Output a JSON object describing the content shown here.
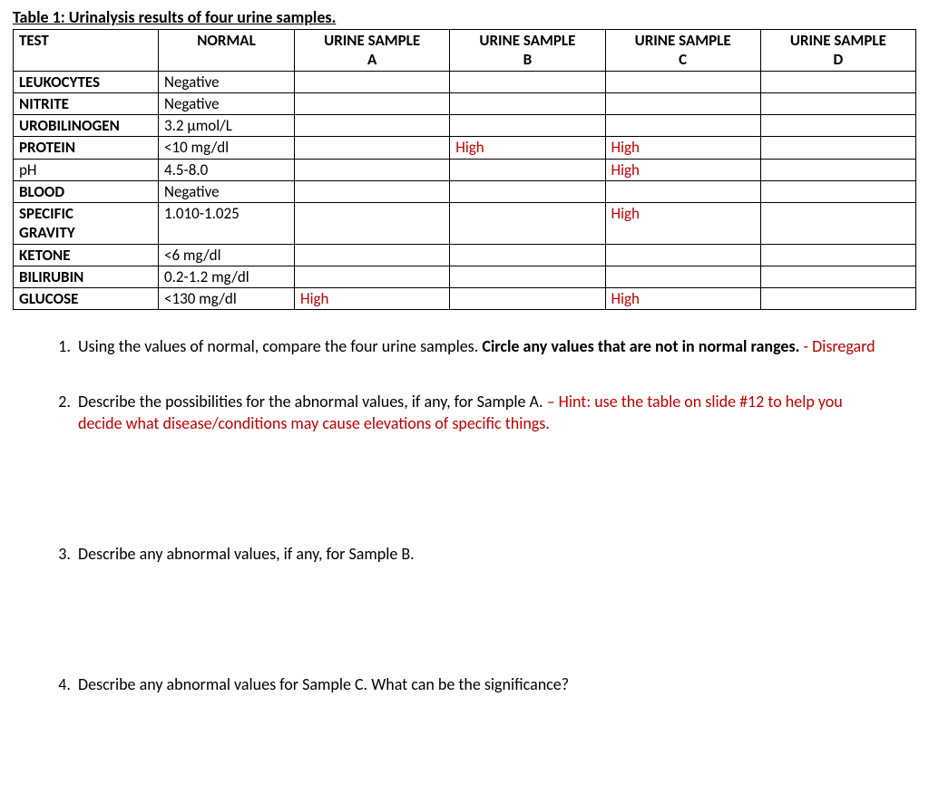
{
  "caption": "Table 1: Urinalysis results of four urine samples.",
  "columns": [
    "TEST",
    "NORMAL",
    "URINE SAMPLE A",
    "URINE SAMPLE B",
    "URINE SAMPLE C",
    "URINE SAMPLE D"
  ],
  "high_label": "High",
  "abnormal_color": "#c00000",
  "border_color": "#000000",
  "rows": [
    {
      "test": "LEUKOCYTES",
      "normal": "Negative",
      "a": "",
      "b": "",
      "c": "",
      "d": ""
    },
    {
      "test": "NITRITE",
      "normal": "Negative",
      "a": "",
      "b": "",
      "c": "",
      "d": ""
    },
    {
      "test": "UROBILINOGEN",
      "normal": "3.2 μmol/L",
      "a": "",
      "b": "",
      "c": "",
      "d": ""
    },
    {
      "test": "PROTEIN",
      "normal": "<10 mg/dl",
      "a": "",
      "b": "High",
      "c": "High",
      "d": ""
    },
    {
      "test": "pH",
      "normal": "4.5-8.0",
      "a": "",
      "b": "",
      "c": "High",
      "d": ""
    },
    {
      "test": "BLOOD",
      "normal": "Negative",
      "a": "",
      "b": "",
      "c": "",
      "d": ""
    },
    {
      "test": "SPECIFIC GRAVITY",
      "normal": "1.010-1.025",
      "a": "",
      "b": "",
      "c": "High",
      "d": ""
    },
    {
      "test": "KETONE",
      "normal": "<6 mg/dl",
      "a": "",
      "b": "",
      "c": "",
      "d": ""
    },
    {
      "test": "BILIRUBIN",
      "normal": "0.2-1.2 mg/dl",
      "a": "",
      "b": "",
      "c": "",
      "d": ""
    },
    {
      "test": "GLUCOSE",
      "normal": "<130 mg/dl",
      "a": "High",
      "b": "",
      "c": "High",
      "d": ""
    }
  ],
  "questions": {
    "q1": {
      "text_a": "Using the values of normal, compare the four urine samples. ",
      "bold": "Circle any values that are not in normal ranges.",
      "note": "  - Disregard"
    },
    "q2": {
      "text": "Describe the possibilities for the abnormal values, if any, for Sample A.  ",
      "hint": "– Hint: use the table on slide #12 to help you decide what disease/conditions may cause elevations of specific things."
    },
    "q3": {
      "text": "Describe any abnormal values, if any, for Sample B."
    },
    "q4": {
      "text": "Describe any abnormal values for Sample C. What can be the significance?"
    }
  }
}
